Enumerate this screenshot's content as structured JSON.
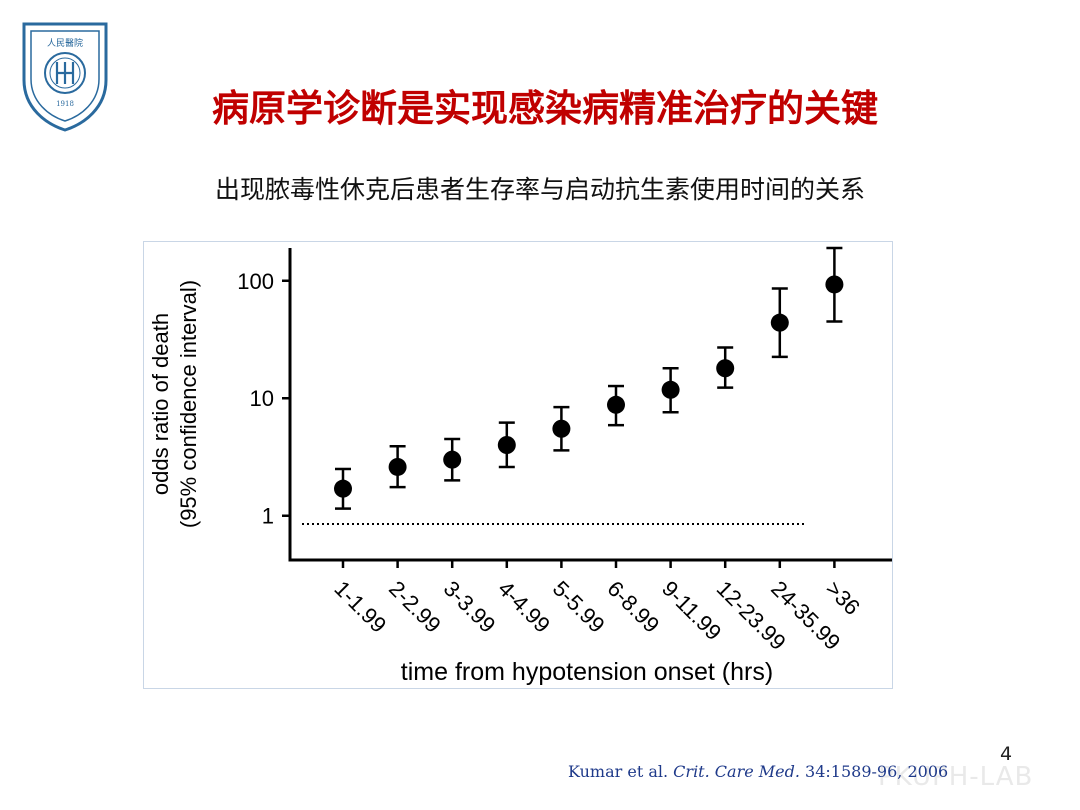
{
  "slide": {
    "title": "病原学诊断是实现感染病精准治疗的关键",
    "subtitle": "出现脓毒性休克后患者生存率与启动抗生素使用时间的关系",
    "page_number": "4",
    "watermark": "PKUPH-LAB",
    "citation": {
      "authors": "Kumar et al.",
      "journal": "Crit. Care Med.",
      "ref": "34:1589-96, 2006"
    }
  },
  "logo": {
    "name": "Peking University People's Hospital",
    "top_text": "人民醫院",
    "year": "1918",
    "colors": {
      "ring": "#2a6a9e",
      "fill": "#ffffff"
    }
  },
  "chart_data": {
    "type": "scatter",
    "title": "",
    "xlabel": "time from hypotension onset (hrs)",
    "ylabel": "odds ratio of death",
    "ylabel2": "(95% confidence interval)",
    "yscale": "log",
    "ylim": [
      0.42,
      190
    ],
    "categories": [
      "1-1.99",
      "2-2.99",
      "3-3.99",
      "4-4.99",
      "5-5.99",
      "6-8.99",
      "9-11.99",
      "12-23.99",
      "24-35.99",
      ">36"
    ],
    "values": [
      1.7,
      2.6,
      3.0,
      4.0,
      5.5,
      8.8,
      11.8,
      18.0,
      44,
      93
    ],
    "lower": [
      1.15,
      1.75,
      2.0,
      2.6,
      3.6,
      5.9,
      7.6,
      12.3,
      22.5,
      45
    ],
    "upper": [
      2.5,
      3.9,
      4.5,
      6.2,
      8.4,
      12.7,
      18.0,
      27,
      86,
      190
    ],
    "yticks": [
      1,
      10,
      100
    ],
    "ytick_labels": [
      "1",
      "10",
      "100"
    ],
    "reference_line": 0.85,
    "grid": false,
    "colors": {
      "marker": "#000000",
      "axis": "#000000"
    }
  }
}
